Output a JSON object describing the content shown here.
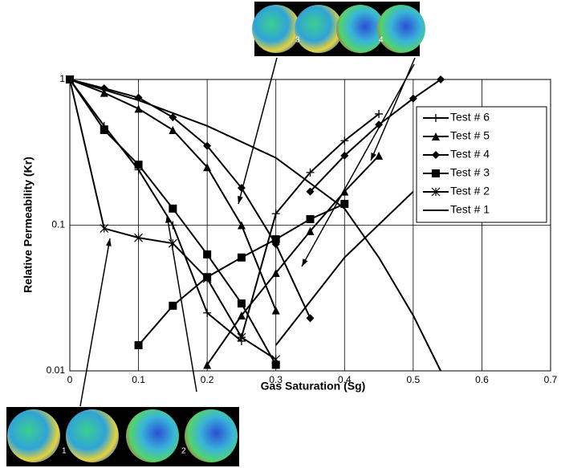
{
  "chart_data": {
    "type": "line",
    "xlabel": "Gas Saturation (Sg)",
    "ylabel": "Relative Permeability (Kr)",
    "xlim": [
      0,
      0.7
    ],
    "xticks": [
      0,
      0.1,
      0.2,
      0.3,
      0.4,
      0.5,
      0.6,
      0.7
    ],
    "ylim": [
      0.01,
      1
    ],
    "yticks": [
      0.01,
      0.1,
      1
    ],
    "log_y": true,
    "grid": true,
    "legend": "right",
    "image_labels": [
      "1",
      "2",
      "3",
      "4"
    ],
    "series": [
      {
        "name": "Test # 6",
        "color": "#000000",
        "marker": "plus",
        "segments": [
          {
            "x": [
              0,
              0.05,
              0.1,
              0.15,
              0.2,
              0.25
            ],
            "values": [
              1,
              0.48,
              0.24,
              0.1,
              0.025,
              0.016
            ]
          },
          {
            "x": [
              0.25,
              0.3,
              0.35,
              0.4,
              0.45
            ],
            "values": [
              0.017,
              0.12,
              0.23,
              0.38,
              0.58
            ]
          }
        ]
      },
      {
        "name": "Test # 5",
        "color": "#000000",
        "marker": "triangle",
        "segments": [
          {
            "x": [
              0,
              0.05,
              0.1,
              0.15,
              0.2,
              0.25,
              0.3
            ],
            "values": [
              1,
              0.81,
              0.63,
              0.45,
              0.25,
              0.1,
              0.026
            ]
          },
          {
            "x": [
              0.2,
              0.25,
              0.3,
              0.35,
              0.4,
              0.45
            ],
            "values": [
              0.011,
              0.024,
              0.047,
              0.091,
              0.17,
              0.3
            ]
          }
        ]
      },
      {
        "name": "Test # 4",
        "color": "#000000",
        "marker": "diamond",
        "segments": [
          {
            "x": [
              0,
              0.05,
              0.1,
              0.15,
              0.2,
              0.25,
              0.3,
              0.35
            ],
            "values": [
              1,
              0.87,
              0.75,
              0.55,
              0.35,
              0.18,
              0.074,
              0.023
            ]
          },
          {
            "x": [
              0.35,
              0.4,
              0.45,
              0.5,
              0.54
            ],
            "values": [
              0.17,
              0.3,
              0.49,
              0.74,
              1
            ]
          }
        ]
      },
      {
        "name": "Test # 3",
        "color": "#000000",
        "marker": "square",
        "segments": [
          {
            "x": [
              0,
              0.05,
              0.1,
              0.15,
              0.2,
              0.25,
              0.3
            ],
            "values": [
              1,
              0.45,
              0.26,
              0.13,
              0.063,
              0.029,
              0.011
            ]
          },
          {
            "x": [
              0.1,
              0.15,
              0.2,
              0.25,
              0.3,
              0.35,
              0.4
            ],
            "values": [
              0.015,
              0.028,
              0.044,
              0.06,
              0.08,
              0.11,
              0.14
            ]
          }
        ]
      },
      {
        "name": "Test # 2",
        "color": "#000000",
        "marker": "star",
        "segments": [
          {
            "x": [
              0,
              0.05,
              0.1,
              0.15,
              0.2,
              0.25,
              0.3
            ],
            "values": [
              1,
              0.095,
              0.082,
              0.075,
              0.043,
              0.017,
              0.012
            ]
          }
        ]
      },
      {
        "name": "Test # 1",
        "color": "#000000",
        "marker": "none",
        "segments": [
          {
            "x": [
              0,
              0.1,
              0.2,
              0.3,
              0.4,
              0.45,
              0.5,
              0.54
            ],
            "values": [
              1,
              0.72,
              0.48,
              0.29,
              0.13,
              0.06,
              0.024,
              0.01
            ]
          },
          {
            "x": [
              0.3,
              0.4,
              0.5
            ],
            "values": [
              0.015,
              0.06,
              0.17
            ]
          }
        ]
      }
    ]
  }
}
